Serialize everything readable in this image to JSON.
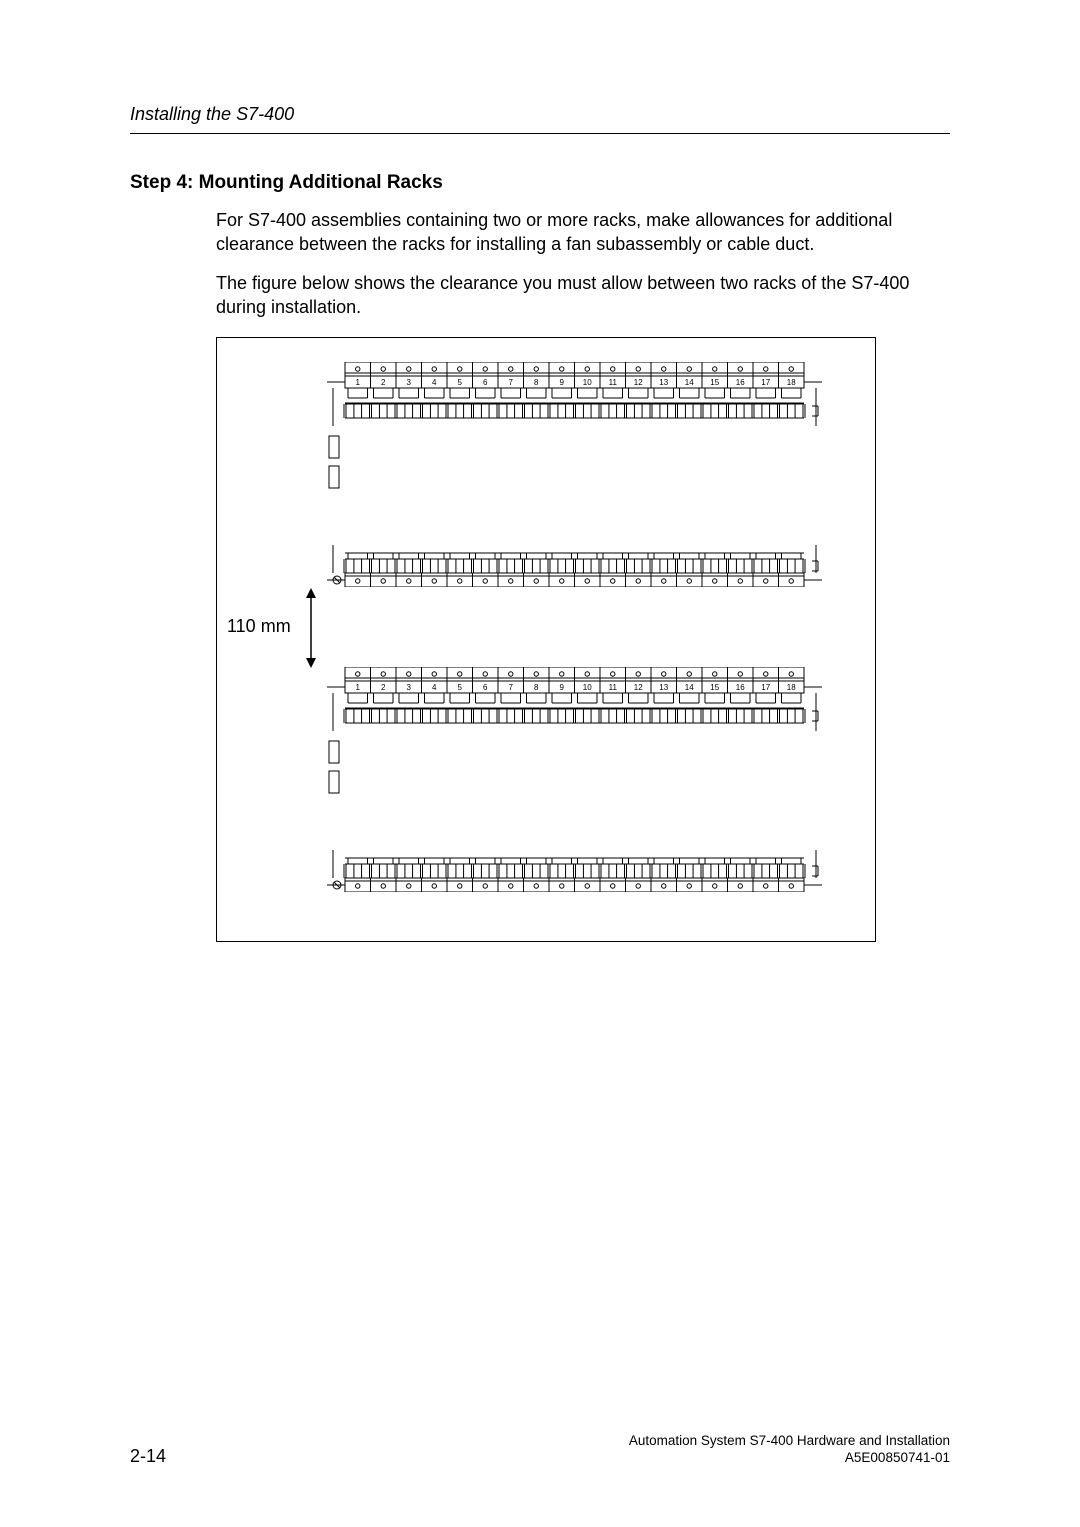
{
  "runningHead": "Installing the S7-400",
  "stepTitle": "Step 4: Mounting Additional Racks",
  "para1": "For S7-400 assemblies containing two or more racks, make allowances for additional clearance between the racks for installing a fan subassembly or cable duct.",
  "para2": "The figure below shows the clearance you must allow between two racks of the S7-400 during installation.",
  "gapLabel": "110 mm",
  "slotNumbers": [
    "1",
    "2",
    "3",
    "4",
    "5",
    "6",
    "7",
    "8",
    "9",
    "10",
    "11",
    "12",
    "13",
    "14",
    "15",
    "16",
    "17",
    "18"
  ],
  "footer": {
    "line1": "Automation System S7-400  Hardware and Installation",
    "line2": "A5E00850741-01",
    "pageNum": "2-14"
  },
  "colors": {
    "text": "#000000",
    "rule": "#000000",
    "rackLine": "#000000",
    "bg": "#ffffff"
  },
  "figure": {
    "slots": 18,
    "rackWidthPx": 495,
    "rackHeightPx": 225,
    "gapPx": 80
  }
}
